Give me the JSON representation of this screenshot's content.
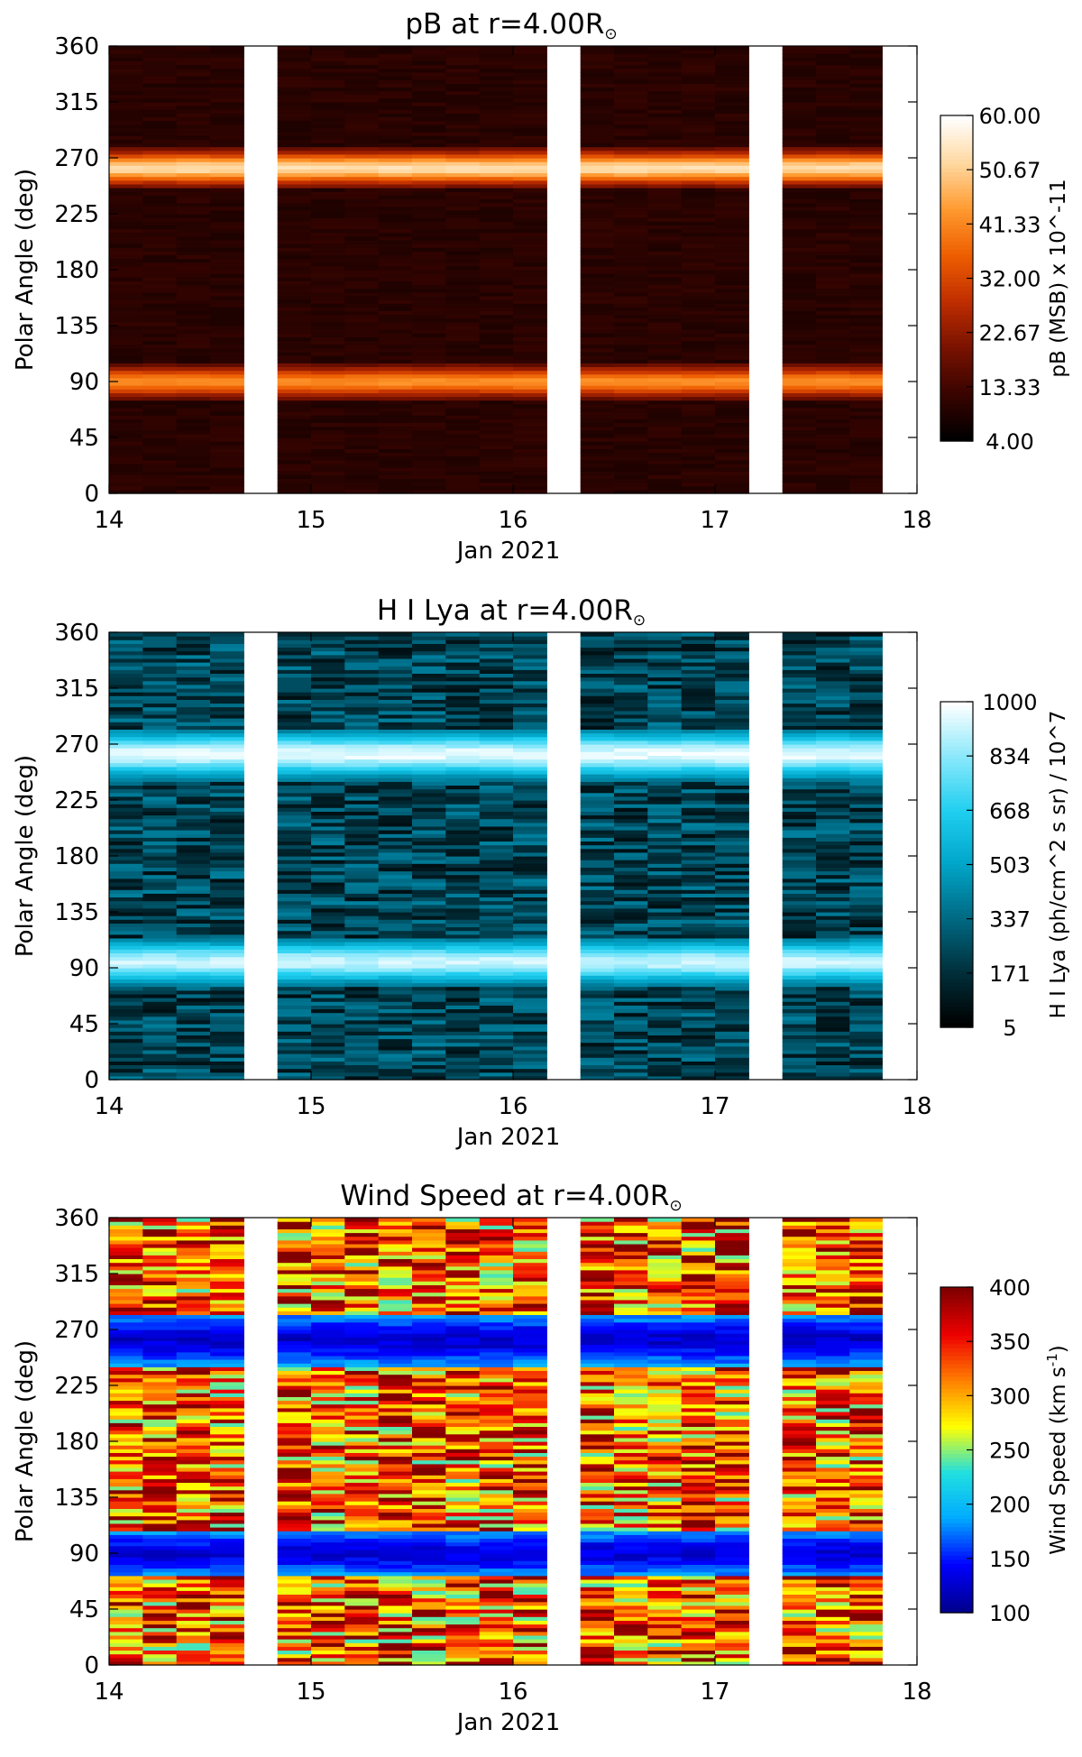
{
  "chart_data": [
    {
      "type": "heatmap",
      "title": "pB at r=4.00R",
      "title_symbol": "⊙",
      "xlabel": "Jan 2021",
      "ylabel": "Polar Angle (deg)",
      "x_ticks": [
        "14",
        "15",
        "16",
        "17",
        "18"
      ],
      "xlim": [
        14,
        18
      ],
      "y_ticks": [
        "0",
        "45",
        "90",
        "135",
        "180",
        "225",
        "270",
        "315",
        "360"
      ],
      "ylim": [
        0,
        360
      ],
      "data_gaps_days": [
        [
          14.67,
          14.83
        ],
        [
          16.17,
          16.33
        ],
        [
          17.17,
          17.33
        ],
        [
          17.83,
          18.0
        ]
      ],
      "bands_deg": [
        {
          "center": 90,
          "width": 22,
          "strength": 0.6
        },
        {
          "center": 262,
          "width": 24,
          "strength": 0.8
        }
      ],
      "colorbar": {
        "label": "pB (MSB) x 10^-11",
        "ticks": [
          "60.00",
          "50.67",
          "41.33",
          "32.00",
          "22.67",
          "13.33",
          "4.00"
        ],
        "range": [
          4.0,
          60.0
        ],
        "colormap": [
          "#000000",
          "#3a0400",
          "#7a1200",
          "#c02e00",
          "#ee5e00",
          "#ff9a30",
          "#ffd8a0",
          "#ffffff"
        ]
      }
    },
    {
      "type": "heatmap",
      "title": "H I Lya at r=4.00R",
      "title_symbol": "⊙",
      "xlabel": "Jan 2021",
      "ylabel": "Polar Angle (deg)",
      "x_ticks": [
        "14",
        "15",
        "16",
        "17",
        "18"
      ],
      "xlim": [
        14,
        18
      ],
      "y_ticks": [
        "0",
        "45",
        "90",
        "135",
        "180",
        "225",
        "270",
        "315",
        "360"
      ],
      "ylim": [
        0,
        360
      ],
      "data_gaps_days": [
        [
          14.67,
          14.83
        ],
        [
          16.17,
          16.33
        ],
        [
          17.17,
          17.33
        ],
        [
          17.83,
          18.0
        ]
      ],
      "bands_deg": [
        {
          "center": 95,
          "width": 30,
          "strength": 0.75
        },
        {
          "center": 262,
          "width": 32,
          "strength": 0.8
        }
      ],
      "colorbar": {
        "label": "H I Lya (ph/cm^2 s sr) / 10^7",
        "ticks": [
          "1000",
          "834",
          "668",
          "503",
          "337",
          "171",
          "5"
        ],
        "range": [
          5,
          1000
        ],
        "colormap": [
          "#000000",
          "#00303c",
          "#006a84",
          "#00a5c8",
          "#20cff0",
          "#8ae8fb",
          "#ffffff"
        ]
      }
    },
    {
      "type": "heatmap",
      "title": "Wind Speed at r=4.00R",
      "title_symbol": "⊙",
      "xlabel": "Jan 2021",
      "ylabel": "Polar Angle (deg)",
      "x_ticks": [
        "14",
        "15",
        "16",
        "17",
        "18"
      ],
      "xlim": [
        14,
        18
      ],
      "y_ticks": [
        "0",
        "45",
        "90",
        "135",
        "180",
        "225",
        "270",
        "315",
        "360"
      ],
      "ylim": [
        0,
        360
      ],
      "data_gaps_days": [
        [
          14.67,
          14.83
        ],
        [
          16.17,
          16.33
        ],
        [
          17.17,
          17.33
        ],
        [
          17.83,
          18.0
        ]
      ],
      "bands_deg": [
        {
          "center": 90,
          "width": 32,
          "strength": 0.85
        },
        {
          "center": 262,
          "width": 35,
          "strength": 0.9
        }
      ],
      "colorbar": {
        "label": "Wind Speed (km s",
        "label_unit_sup": "-1",
        "label_end": ")",
        "ticks": [
          "400",
          "350",
          "300",
          "250",
          "200",
          "150",
          "100"
        ],
        "range": [
          100,
          400
        ],
        "colormap": [
          "#00008f",
          "#0000ff",
          "#00aaff",
          "#20e0e0",
          "#ffff00",
          "#ff7f00",
          "#ee0000",
          "#800000"
        ]
      }
    }
  ]
}
